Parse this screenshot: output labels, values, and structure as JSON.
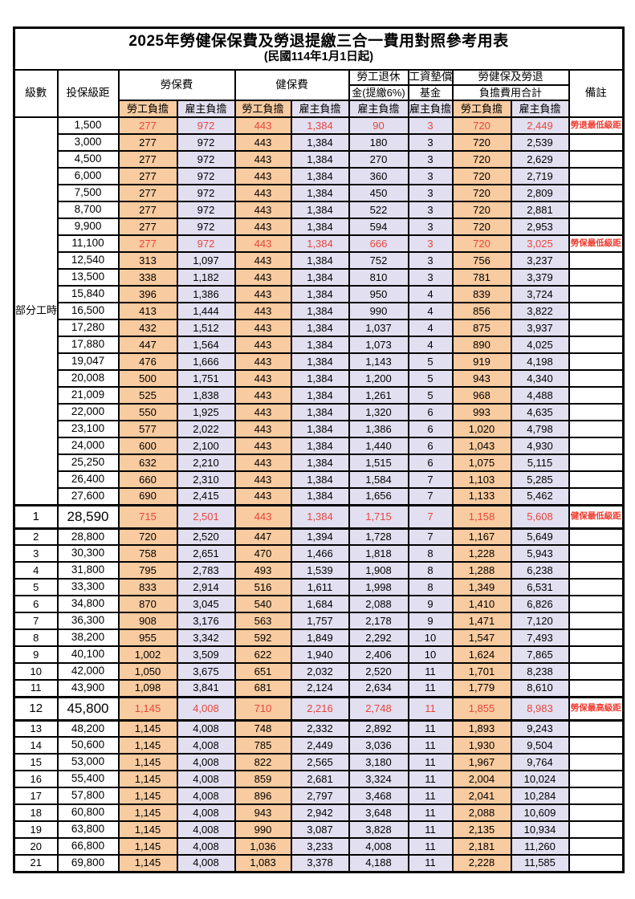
{
  "title": "2025年勞健保保費及勞退提繳三合一費用對照參考用表",
  "subtitle": "(民國114年1月1日起)",
  "header": {
    "level": "級數",
    "wage": "投保級距",
    "labor": "勞保費",
    "health": "健保費",
    "pension_l1": "勞工退休",
    "pension_l2": "金(提繳6%)",
    "wagefund_l1": "工資墊償",
    "wagefund_l2": "基金",
    "total_l1": "勞健保及勞退",
    "total_l2": "負擔費用合計",
    "worker": "勞工負擔",
    "employer": "雇主負擔",
    "remark": "備註",
    "part_time": "部分工時"
  },
  "part_time_rowspan": 23,
  "colors": {
    "worker_bg": "#f8cba0",
    "employer_bg": "#e2dff1",
    "red_text": "#e8463a",
    "remark_text": "#f23a2e"
  },
  "rows": [
    {
      "lvl": "",
      "wage": "1,500",
      "v": [
        "277",
        "972",
        "443",
        "1,384",
        "90",
        "3",
        "720",
        "2,449"
      ],
      "red": true,
      "tall": false,
      "remark": "勞退最低級距"
    },
    {
      "lvl": "",
      "wage": "3,000",
      "v": [
        "277",
        "972",
        "443",
        "1,384",
        "180",
        "3",
        "720",
        "2,539"
      ],
      "red": false,
      "tall": false,
      "remark": ""
    },
    {
      "lvl": "",
      "wage": "4,500",
      "v": [
        "277",
        "972",
        "443",
        "1,384",
        "270",
        "3",
        "720",
        "2,629"
      ],
      "red": false,
      "tall": false,
      "remark": ""
    },
    {
      "lvl": "",
      "wage": "6,000",
      "v": [
        "277",
        "972",
        "443",
        "1,384",
        "360",
        "3",
        "720",
        "2,719"
      ],
      "red": false,
      "tall": false,
      "remark": ""
    },
    {
      "lvl": "",
      "wage": "7,500",
      "v": [
        "277",
        "972",
        "443",
        "1,384",
        "450",
        "3",
        "720",
        "2,809"
      ],
      "red": false,
      "tall": false,
      "remark": ""
    },
    {
      "lvl": "",
      "wage": "8,700",
      "v": [
        "277",
        "972",
        "443",
        "1,384",
        "522",
        "3",
        "720",
        "2,881"
      ],
      "red": false,
      "tall": false,
      "remark": ""
    },
    {
      "lvl": "",
      "wage": "9,900",
      "v": [
        "277",
        "972",
        "443",
        "1,384",
        "594",
        "3",
        "720",
        "2,953"
      ],
      "red": false,
      "tall": false,
      "remark": ""
    },
    {
      "lvl": "",
      "wage": "11,100",
      "v": [
        "277",
        "972",
        "443",
        "1,384",
        "666",
        "3",
        "720",
        "3,025"
      ],
      "red": true,
      "tall": false,
      "remark": "勞保最低級距"
    },
    {
      "lvl": "",
      "wage": "12,540",
      "v": [
        "313",
        "1,097",
        "443",
        "1,384",
        "752",
        "3",
        "756",
        "3,237"
      ],
      "red": false,
      "tall": false,
      "remark": ""
    },
    {
      "lvl": "",
      "wage": "13,500",
      "v": [
        "338",
        "1,182",
        "443",
        "1,384",
        "810",
        "3",
        "781",
        "3,379"
      ],
      "red": false,
      "tall": false,
      "remark": ""
    },
    {
      "lvl": "",
      "wage": "15,840",
      "v": [
        "396",
        "1,386",
        "443",
        "1,384",
        "950",
        "4",
        "839",
        "3,724"
      ],
      "red": false,
      "tall": false,
      "remark": ""
    },
    {
      "lvl": "",
      "wage": "16,500",
      "v": [
        "413",
        "1,444",
        "443",
        "1,384",
        "990",
        "4",
        "856",
        "3,822"
      ],
      "red": false,
      "tall": false,
      "remark": ""
    },
    {
      "lvl": "",
      "wage": "17,280",
      "v": [
        "432",
        "1,512",
        "443",
        "1,384",
        "1,037",
        "4",
        "875",
        "3,937"
      ],
      "red": false,
      "tall": false,
      "remark": ""
    },
    {
      "lvl": "",
      "wage": "17,880",
      "v": [
        "447",
        "1,564",
        "443",
        "1,384",
        "1,073",
        "4",
        "890",
        "4,025"
      ],
      "red": false,
      "tall": false,
      "remark": ""
    },
    {
      "lvl": "",
      "wage": "19,047",
      "v": [
        "476",
        "1,666",
        "443",
        "1,384",
        "1,143",
        "5",
        "919",
        "4,198"
      ],
      "red": false,
      "tall": false,
      "remark": ""
    },
    {
      "lvl": "",
      "wage": "20,008",
      "v": [
        "500",
        "1,751",
        "443",
        "1,384",
        "1,200",
        "5",
        "943",
        "4,340"
      ],
      "red": false,
      "tall": false,
      "remark": ""
    },
    {
      "lvl": "",
      "wage": "21,009",
      "v": [
        "525",
        "1,838",
        "443",
        "1,384",
        "1,261",
        "5",
        "968",
        "4,488"
      ],
      "red": false,
      "tall": false,
      "remark": ""
    },
    {
      "lvl": "",
      "wage": "22,000",
      "v": [
        "550",
        "1,925",
        "443",
        "1,384",
        "1,320",
        "6",
        "993",
        "4,635"
      ],
      "red": false,
      "tall": false,
      "remark": ""
    },
    {
      "lvl": "",
      "wage": "23,100",
      "v": [
        "577",
        "2,022",
        "443",
        "1,384",
        "1,386",
        "6",
        "1,020",
        "4,798"
      ],
      "red": false,
      "tall": false,
      "remark": ""
    },
    {
      "lvl": "",
      "wage": "24,000",
      "v": [
        "600",
        "2,100",
        "443",
        "1,384",
        "1,440",
        "6",
        "1,043",
        "4,930"
      ],
      "red": false,
      "tall": false,
      "remark": ""
    },
    {
      "lvl": "",
      "wage": "25,250",
      "v": [
        "632",
        "2,210",
        "443",
        "1,384",
        "1,515",
        "6",
        "1,075",
        "5,115"
      ],
      "red": false,
      "tall": false,
      "remark": ""
    },
    {
      "lvl": "",
      "wage": "26,400",
      "v": [
        "660",
        "2,310",
        "443",
        "1,384",
        "1,584",
        "7",
        "1,103",
        "5,285"
      ],
      "red": false,
      "tall": false,
      "remark": ""
    },
    {
      "lvl": "",
      "wage": "27,600",
      "v": [
        "690",
        "2,415",
        "443",
        "1,384",
        "1,656",
        "7",
        "1,133",
        "5,462"
      ],
      "red": false,
      "tall": false,
      "remark": ""
    },
    {
      "lvl": "1",
      "wage": "28,590",
      "v": [
        "715",
        "2,501",
        "443",
        "1,384",
        "1,715",
        "7",
        "1,158",
        "5,608"
      ],
      "red": true,
      "tall": true,
      "remark": "健保最低級距"
    },
    {
      "lvl": "2",
      "wage": "28,800",
      "v": [
        "720",
        "2,520",
        "447",
        "1,394",
        "1,728",
        "7",
        "1,167",
        "5,649"
      ],
      "red": false,
      "tall": false,
      "remark": ""
    },
    {
      "lvl": "3",
      "wage": "30,300",
      "v": [
        "758",
        "2,651",
        "470",
        "1,466",
        "1,818",
        "8",
        "1,228",
        "5,943"
      ],
      "red": false,
      "tall": false,
      "remark": ""
    },
    {
      "lvl": "4",
      "wage": "31,800",
      "v": [
        "795",
        "2,783",
        "493",
        "1,539",
        "1,908",
        "8",
        "1,288",
        "6,238"
      ],
      "red": false,
      "tall": false,
      "remark": ""
    },
    {
      "lvl": "5",
      "wage": "33,300",
      "v": [
        "833",
        "2,914",
        "516",
        "1,611",
        "1,998",
        "8",
        "1,349",
        "6,531"
      ],
      "red": false,
      "tall": false,
      "remark": ""
    },
    {
      "lvl": "6",
      "wage": "34,800",
      "v": [
        "870",
        "3,045",
        "540",
        "1,684",
        "2,088",
        "9",
        "1,410",
        "6,826"
      ],
      "red": false,
      "tall": false,
      "remark": ""
    },
    {
      "lvl": "7",
      "wage": "36,300",
      "v": [
        "908",
        "3,176",
        "563",
        "1,757",
        "2,178",
        "9",
        "1,471",
        "7,120"
      ],
      "red": false,
      "tall": false,
      "remark": ""
    },
    {
      "lvl": "8",
      "wage": "38,200",
      "v": [
        "955",
        "3,342",
        "592",
        "1,849",
        "2,292",
        "10",
        "1,547",
        "7,493"
      ],
      "red": false,
      "tall": false,
      "remark": ""
    },
    {
      "lvl": "9",
      "wage": "40,100",
      "v": [
        "1,002",
        "3,509",
        "622",
        "1,940",
        "2,406",
        "10",
        "1,624",
        "7,865"
      ],
      "red": false,
      "tall": false,
      "remark": ""
    },
    {
      "lvl": "10",
      "wage": "42,000",
      "v": [
        "1,050",
        "3,675",
        "651",
        "2,032",
        "2,520",
        "11",
        "1,701",
        "8,238"
      ],
      "red": false,
      "tall": false,
      "remark": ""
    },
    {
      "lvl": "11",
      "wage": "43,900",
      "v": [
        "1,098",
        "3,841",
        "681",
        "2,124",
        "2,634",
        "11",
        "1,779",
        "8,610"
      ],
      "red": false,
      "tall": false,
      "remark": ""
    },
    {
      "lvl": "12",
      "wage": "45,800",
      "v": [
        "1,145",
        "4,008",
        "710",
        "2,216",
        "2,748",
        "11",
        "1,855",
        "8,983"
      ],
      "red": true,
      "tall": true,
      "remark": "勞保最高級距"
    },
    {
      "lvl": "13",
      "wage": "48,200",
      "v": [
        "1,145",
        "4,008",
        "748",
        "2,332",
        "2,892",
        "11",
        "1,893",
        "9,243"
      ],
      "red": false,
      "tall": false,
      "remark": ""
    },
    {
      "lvl": "14",
      "wage": "50,600",
      "v": [
        "1,145",
        "4,008",
        "785",
        "2,449",
        "3,036",
        "11",
        "1,930",
        "9,504"
      ],
      "red": false,
      "tall": false,
      "remark": ""
    },
    {
      "lvl": "15",
      "wage": "53,000",
      "v": [
        "1,145",
        "4,008",
        "822",
        "2,565",
        "3,180",
        "11",
        "1,967",
        "9,764"
      ],
      "red": false,
      "tall": false,
      "remark": ""
    },
    {
      "lvl": "16",
      "wage": "55,400",
      "v": [
        "1,145",
        "4,008",
        "859",
        "2,681",
        "3,324",
        "11",
        "2,004",
        "10,024"
      ],
      "red": false,
      "tall": false,
      "remark": ""
    },
    {
      "lvl": "17",
      "wage": "57,800",
      "v": [
        "1,145",
        "4,008",
        "896",
        "2,797",
        "3,468",
        "11",
        "2,041",
        "10,284"
      ],
      "red": false,
      "tall": false,
      "remark": ""
    },
    {
      "lvl": "18",
      "wage": "60,800",
      "v": [
        "1,145",
        "4,008",
        "943",
        "2,942",
        "3,648",
        "11",
        "2,088",
        "10,609"
      ],
      "red": false,
      "tall": false,
      "remark": ""
    },
    {
      "lvl": "19",
      "wage": "63,800",
      "v": [
        "1,145",
        "4,008",
        "990",
        "3,087",
        "3,828",
        "11",
        "2,135",
        "10,934"
      ],
      "red": false,
      "tall": false,
      "remark": ""
    },
    {
      "lvl": "20",
      "wage": "66,800",
      "v": [
        "1,145",
        "4,008",
        "1,036",
        "3,233",
        "4,008",
        "11",
        "2,181",
        "11,260"
      ],
      "red": false,
      "tall": false,
      "remark": ""
    },
    {
      "lvl": "21",
      "wage": "69,800",
      "v": [
        "1,145",
        "4,008",
        "1,083",
        "3,378",
        "4,188",
        "11",
        "2,228",
        "11,585"
      ],
      "red": false,
      "tall": false,
      "remark": ""
    }
  ]
}
